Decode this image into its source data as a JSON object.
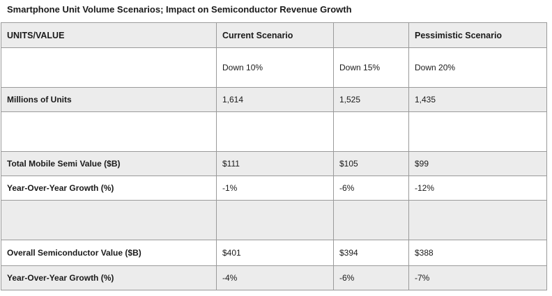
{
  "title": "Smartphone Unit Volume Scenarios; Impact on Semiconductor Revenue Growth",
  "headers": [
    "UNITS/VALUE",
    "Current Scenario",
    "",
    "Pessimistic Scenario"
  ],
  "rows": [
    [
      "",
      "Down 10%",
      "Down 15%",
      "Down 20%"
    ],
    [
      "Millions of Units",
      "1,614",
      "1,525",
      "1,435"
    ],
    [
      "",
      "",
      "",
      ""
    ],
    [
      "Total Mobile Semi Value ($B)",
      "$111",
      "$105",
      "$99"
    ],
    [
      "Year-Over-Year Growth (%)",
      "-1%",
      "-6%",
      "-12%"
    ],
    [
      "",
      "",
      "",
      ""
    ],
    [
      "Overall Semiconductor Value ($B)",
      "$401",
      "$394",
      "$388"
    ],
    [
      "Year-Over-Year Growth (%)",
      "-4%",
      "-6%",
      "-7%"
    ]
  ]
}
